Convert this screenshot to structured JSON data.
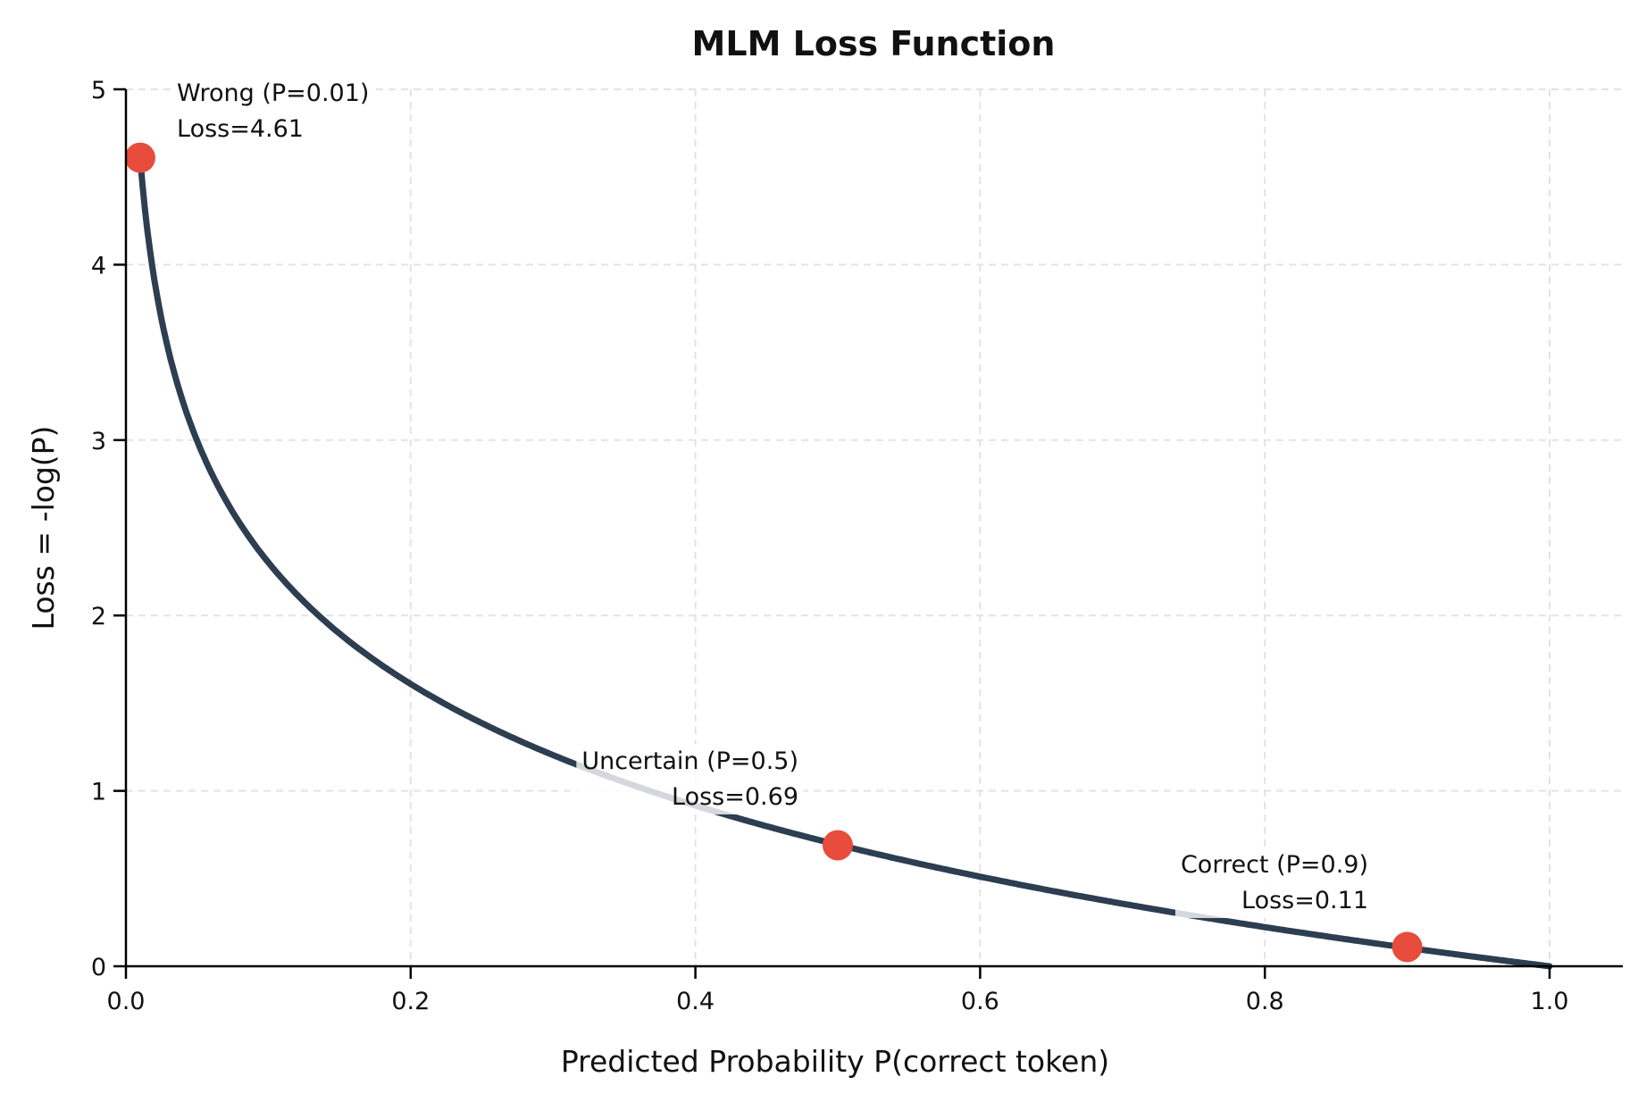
{
  "chart_data": {
    "type": "line",
    "title": "MLM Loss Function",
    "xlabel": "Predicted Probability P(correct token)",
    "ylabel": "Loss = -log(P)",
    "xlim": [
      0.0,
      1.05
    ],
    "ylim": [
      0,
      5
    ],
    "xticks": [
      "0.0",
      "0.2",
      "0.4",
      "0.6",
      "0.8",
      "1.0"
    ],
    "yticks": [
      "0",
      "1",
      "2",
      "3",
      "4",
      "5"
    ],
    "grid": true,
    "series": [
      {
        "function": "-ln(P)",
        "x_range": [
          0.01,
          1.0
        ],
        "color": "#2c3e50"
      }
    ],
    "points": [
      {
        "x": 0.01,
        "y": 4.61,
        "label1": "Wrong (P=0.01)",
        "label2": "Loss=4.61"
      },
      {
        "x": 0.5,
        "y": 0.69,
        "label1": "Uncertain (P=0.5)",
        "label2": "Loss=0.69"
      },
      {
        "x": 0.9,
        "y": 0.11,
        "label1": "Correct (P=0.9)",
        "label2": "Loss=0.11"
      }
    ],
    "point_color": "#e74c3c"
  }
}
